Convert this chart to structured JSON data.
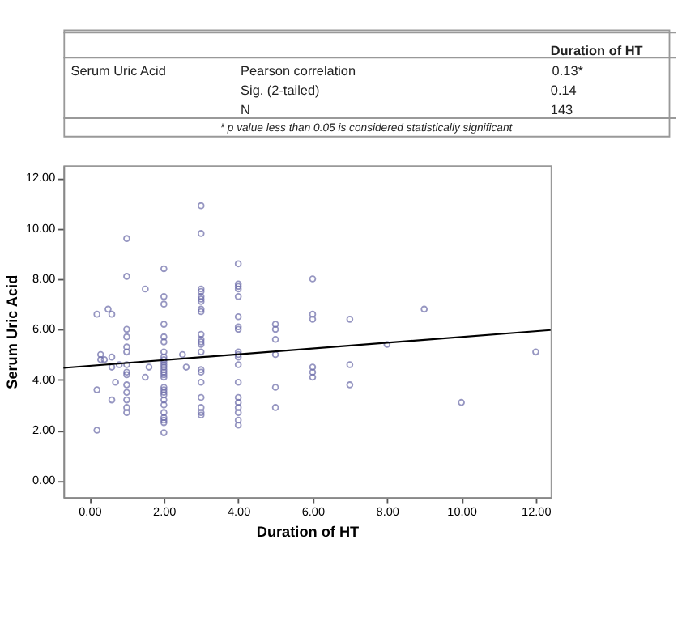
{
  "chart_data": {
    "type": "scatter",
    "xlabel": "Duration of HT",
    "ylabel": "Serum Uric Acid",
    "annotations": [
      "Duration of HT",
      "Serum Uric Acid",
      "Pearson correlation",
      "0.13*",
      "Sig. (2-tailed)",
      "0.14",
      "N",
      "143",
      "* p value less than 0.05 is considered statistically significant"
    ],
    "grid": false,
    "xlim": [
      -0.7,
      12.4
    ],
    "ylim": [
      -0.66,
      12.5
    ],
    "xticks": [
      {
        "value": 0,
        "label": "0.00"
      },
      {
        "value": 2,
        "label": "2.00"
      },
      {
        "value": 4,
        "label": "4.00"
      },
      {
        "value": 6,
        "label": "6.00"
      },
      {
        "value": 8,
        "label": "8.00"
      },
      {
        "value": 10,
        "label": "10.00"
      },
      {
        "value": 12,
        "label": "12.00"
      }
    ],
    "yticks": [
      {
        "value": 0,
        "label": "0.00"
      },
      {
        "value": 2,
        "label": "2.00"
      },
      {
        "value": 4,
        "label": "4.00"
      },
      {
        "value": 6,
        "label": "6.00"
      },
      {
        "value": 8,
        "label": "8.00"
      },
      {
        "value": 10,
        "label": "10.00"
      },
      {
        "value": 12,
        "label": "12.00"
      }
    ],
    "series": [
      {
        "color": "#6a6aa8",
        "marker": "circle",
        "x": [
          0.2,
          0.2,
          0.2,
          0.3,
          0.3,
          0.4,
          0.5,
          0.6,
          0.6,
          0.6,
          0.6,
          0.7,
          0.8,
          1,
          1,
          1,
          1,
          1,
          1,
          1,
          1,
          1,
          1,
          1,
          1,
          1,
          1,
          1.5,
          1.5,
          1.6,
          2,
          2,
          2,
          2,
          2,
          2,
          2,
          2,
          2,
          2,
          2,
          2,
          2,
          2,
          2,
          2,
          2,
          2,
          2,
          2,
          2,
          2,
          2,
          2,
          2,
          2,
          2,
          2.5,
          2.6,
          3,
          3,
          3,
          3,
          3,
          3,
          3,
          3,
          3,
          3,
          3,
          3,
          3,
          3,
          3,
          3,
          3,
          3,
          3,
          3,
          3,
          4,
          4,
          4,
          4,
          4,
          4,
          4,
          4,
          4,
          4,
          4,
          4,
          4,
          4,
          4,
          4,
          4,
          4,
          4,
          5,
          5,
          5,
          5,
          5,
          5,
          6,
          6,
          6,
          6,
          6,
          6,
          7,
          7,
          7,
          8,
          9,
          10,
          12
        ],
        "values": [
          6.6,
          3.6,
          2.0,
          5.0,
          4.8,
          4.8,
          6.8,
          6.6,
          4.9,
          4.5,
          3.2,
          3.9,
          4.6,
          9.6,
          8.1,
          6.0,
          5.7,
          5.3,
          5.1,
          4.6,
          4.3,
          4.2,
          3.8,
          3.5,
          3.2,
          2.9,
          2.7,
          7.6,
          4.1,
          4.5,
          8.4,
          7.3,
          7.0,
          6.2,
          5.7,
          5.5,
          5.1,
          4.9,
          4.8,
          4.7,
          4.6,
          4.5,
          4.4,
          4.3,
          4.2,
          4.1,
          3.7,
          3.6,
          3.5,
          3.4,
          3.2,
          3.0,
          2.7,
          2.5,
          2.4,
          2.3,
          1.9,
          5.0,
          4.5,
          10.9,
          9.8,
          7.6,
          7.5,
          7.3,
          7.2,
          7.1,
          6.8,
          6.7,
          5.8,
          5.6,
          5.5,
          5.4,
          5.1,
          4.4,
          4.3,
          3.9,
          3.3,
          2.9,
          2.7,
          2.6,
          8.6,
          7.8,
          7.7,
          7.6,
          7.3,
          6.5,
          6.1,
          6.0,
          5.1,
          5.0,
          4.9,
          4.6,
          3.9,
          3.3,
          3.1,
          2.9,
          2.7,
          2.4,
          2.2,
          6.2,
          6.0,
          5.6,
          5.0,
          3.7,
          2.9,
          8.0,
          6.6,
          6.4,
          4.5,
          4.3,
          4.1,
          6.4,
          4.6,
          3.8,
          5.4,
          6.8,
          3.1,
          5.1
        ]
      },
      {
        "type": "line",
        "color": "#000000",
        "marker": "none",
        "line_style": "solid",
        "x": [
          -0.7,
          12.4
        ],
        "values": [
          4.47,
          5.97
        ]
      }
    ]
  }
}
